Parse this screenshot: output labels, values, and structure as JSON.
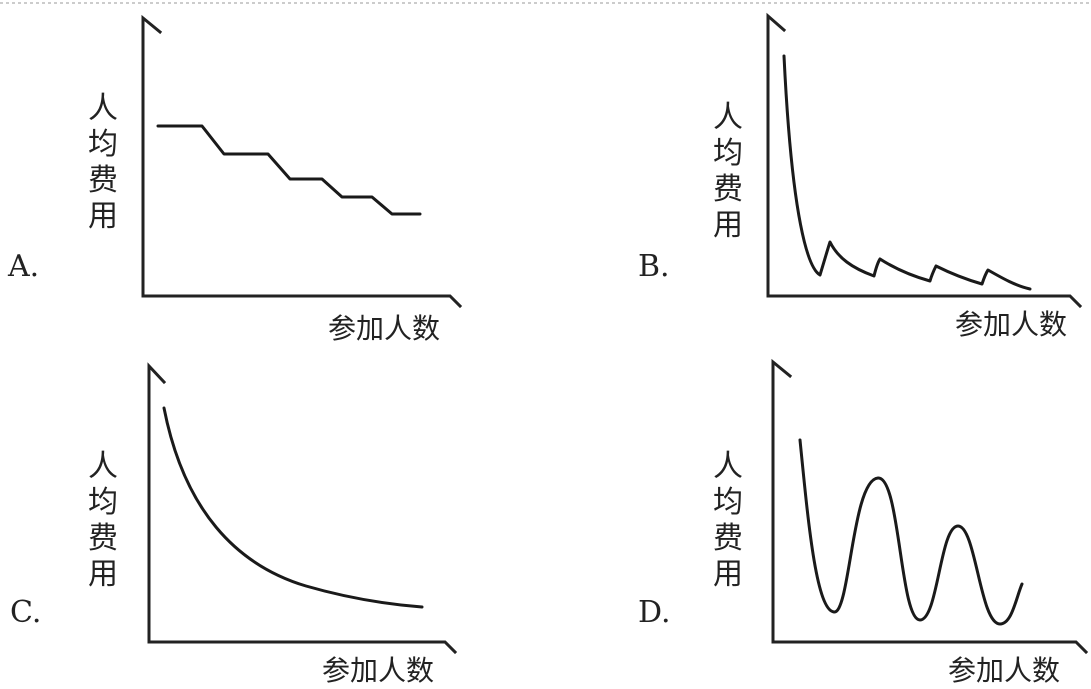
{
  "panels": [
    {
      "option": "A.",
      "ylabel": [
        "人",
        "均",
        "费",
        "用"
      ],
      "xlabel": "参加人数"
    },
    {
      "option": "B.",
      "ylabel": [
        "人",
        "均",
        "费",
        "用"
      ],
      "xlabel": "参加人数"
    },
    {
      "option": "C.",
      "ylabel": [
        "人",
        "均",
        "费",
        "用"
      ],
      "xlabel": "参加人数"
    },
    {
      "option": "D.",
      "ylabel": [
        "人",
        "均",
        "费",
        "用"
      ],
      "xlabel": "参加人数"
    }
  ]
}
